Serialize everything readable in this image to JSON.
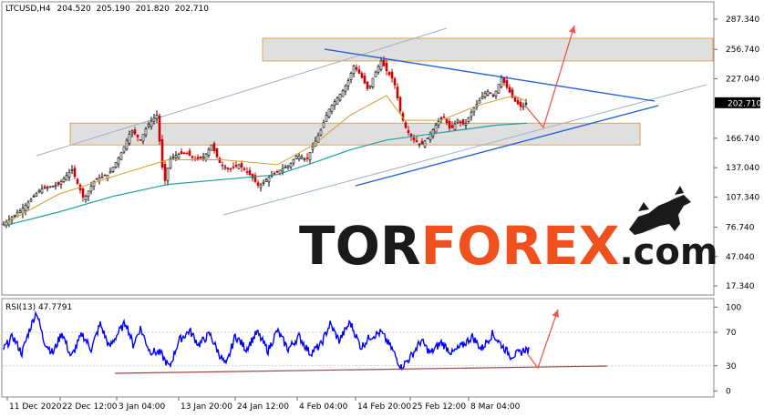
{
  "chart_data": [
    {
      "type": "candlestick",
      "header": {
        "symbol": "LTCUSD,H4",
        "open": "204.520",
        "high": "205.190",
        "low": "201.820",
        "close": "202.710"
      },
      "price_badge": "202.710",
      "y_ticks": [
        "287.340",
        "256.740",
        "227.040",
        "197.340",
        "166.740",
        "137.040",
        "107.340",
        "76.740",
        "47.040",
        "17.340"
      ],
      "y_tick_values": [
        287.34,
        256.74,
        227.04,
        197.34,
        166.74,
        137.04,
        107.34,
        76.74,
        47.04,
        17.34
      ],
      "ylim": [
        10,
        303
      ],
      "x_ticks": [
        "11 Dec 2020",
        "22 Dec 12:00",
        "3 Jan 04:00",
        "13 Jan 20:00",
        "24 Jan 12:00",
        "4 Feb 04:00",
        "14 Feb 20:00",
        "25 Feb 12:00",
        "8 Mar 04:00"
      ],
      "price_path": [
        [
          0,
          80
        ],
        [
          20,
          95
        ],
        [
          40,
          115
        ],
        [
          60,
          120
        ],
        [
          75,
          135
        ],
        [
          88,
          105
        ],
        [
          100,
          125
        ],
        [
          115,
          130
        ],
        [
          128,
          150
        ],
        [
          140,
          175
        ],
        [
          150,
          165
        ],
        [
          158,
          180
        ],
        [
          168,
          190
        ],
        [
          172,
          155
        ],
        [
          176,
          120
        ],
        [
          182,
          145
        ],
        [
          190,
          150
        ],
        [
          200,
          152
        ],
        [
          210,
          145
        ],
        [
          220,
          148
        ],
        [
          228,
          160
        ],
        [
          238,
          140
        ],
        [
          248,
          135
        ],
        [
          258,
          140
        ],
        [
          270,
          130
        ],
        [
          280,
          118
        ],
        [
          292,
          128
        ],
        [
          304,
          135
        ],
        [
          314,
          140
        ],
        [
          322,
          150
        ],
        [
          332,
          145
        ],
        [
          340,
          160
        ],
        [
          348,
          175
        ],
        [
          356,
          195
        ],
        [
          364,
          205
        ],
        [
          372,
          215
        ],
        [
          378,
          225
        ],
        [
          384,
          240
        ],
        [
          392,
          230
        ],
        [
          400,
          215
        ],
        [
          406,
          230
        ],
        [
          414,
          245
        ],
        [
          420,
          235
        ],
        [
          428,
          225
        ],
        [
          436,
          190
        ],
        [
          442,
          175
        ],
        [
          450,
          165
        ],
        [
          458,
          160
        ],
        [
          466,
          168
        ],
        [
          474,
          180
        ],
        [
          482,
          190
        ],
        [
          490,
          175
        ],
        [
          498,
          185
        ],
        [
          506,
          180
        ],
        [
          514,
          195
        ],
        [
          522,
          205
        ],
        [
          530,
          215
        ],
        [
          538,
          210
        ],
        [
          546,
          228
        ],
        [
          554,
          215
        ],
        [
          560,
          205
        ],
        [
          568,
          198
        ],
        [
          574,
          202.7
        ]
      ],
      "ma_slow_path": [
        [
          0,
          78
        ],
        [
          60,
          92
        ],
        [
          120,
          108
        ],
        [
          180,
          120
        ],
        [
          240,
          125
        ],
        [
          300,
          130
        ],
        [
          340,
          142
        ],
        [
          380,
          155
        ],
        [
          420,
          165
        ],
        [
          460,
          170
        ],
        [
          500,
          175
        ],
        [
          540,
          180
        ],
        [
          574,
          182
        ]
      ],
      "ma_fast_path": [
        [
          0,
          80
        ],
        [
          60,
          110
        ],
        [
          120,
          128
        ],
        [
          180,
          145
        ],
        [
          240,
          145
        ],
        [
          300,
          140
        ],
        [
          340,
          160
        ],
        [
          380,
          190
        ],
        [
          420,
          210
        ],
        [
          440,
          185
        ],
        [
          480,
          185
        ],
        [
          520,
          200
        ],
        [
          560,
          210
        ],
        [
          574,
          204
        ]
      ],
      "zones": [
        [
          245,
          268
        ],
        [
          160,
          182
        ]
      ],
      "colors": {
        "bull": "#000000",
        "bear": "#cc0000",
        "ma_slow": "#20a0a0",
        "ma_fast": "#d4a030",
        "channel": "#9fb0c8",
        "trend": "#1e5fd6",
        "arrow": "#f0584a",
        "zone_fill": "#d9d9d9",
        "zone_edge": "#e7a24a"
      }
    },
    {
      "type": "line",
      "header": {
        "label": "RSI(13) 47.7791"
      },
      "y_ticks": [
        "100",
        "70",
        "30",
        "0"
      ],
      "y_tick_values": [
        100,
        70,
        30,
        0
      ],
      "ylim": [
        -5,
        108
      ],
      "rsi_path": [
        [
          0,
          50
        ],
        [
          10,
          65
        ],
        [
          20,
          45
        ],
        [
          28,
          72
        ],
        [
          36,
          95
        ],
        [
          44,
          60
        ],
        [
          54,
          45
        ],
        [
          64,
          70
        ],
        [
          74,
          40
        ],
        [
          86,
          68
        ],
        [
          96,
          50
        ],
        [
          106,
          80
        ],
        [
          116,
          52
        ],
        [
          126,
          70
        ],
        [
          134,
          82
        ],
        [
          142,
          55
        ],
        [
          150,
          75
        ],
        [
          160,
          48
        ],
        [
          172,
          45
        ],
        [
          182,
          28
        ],
        [
          192,
          60
        ],
        [
          204,
          72
        ],
        [
          214,
          55
        ],
        [
          226,
          68
        ],
        [
          236,
          45
        ],
        [
          244,
          30
        ],
        [
          254,
          66
        ],
        [
          266,
          50
        ],
        [
          278,
          70
        ],
        [
          290,
          48
        ],
        [
          300,
          72
        ],
        [
          312,
          50
        ],
        [
          324,
          65
        ],
        [
          336,
          45
        ],
        [
          348,
          55
        ],
        [
          358,
          80
        ],
        [
          368,
          60
        ],
        [
          380,
          82
        ],
        [
          392,
          52
        ],
        [
          402,
          65
        ],
        [
          414,
          70
        ],
        [
          426,
          50
        ],
        [
          436,
          28
        ],
        [
          446,
          40
        ],
        [
          458,
          60
        ],
        [
          468,
          45
        ],
        [
          480,
          58
        ],
        [
          492,
          45
        ],
        [
          504,
          55
        ],
        [
          514,
          65
        ],
        [
          524,
          50
        ],
        [
          536,
          68
        ],
        [
          546,
          55
        ],
        [
          556,
          42
        ],
        [
          566,
          45
        ],
        [
          572,
          50
        ],
        [
          576,
          47.78
        ]
      ],
      "colors": {
        "line": "#0000ff",
        "support": "#9a4a4a",
        "arrow": "#f0584a",
        "levels": "#b0b0b0"
      }
    }
  ],
  "watermark": {
    "part1": "TOR",
    "part2": "FOREX",
    "part3": ".com"
  }
}
